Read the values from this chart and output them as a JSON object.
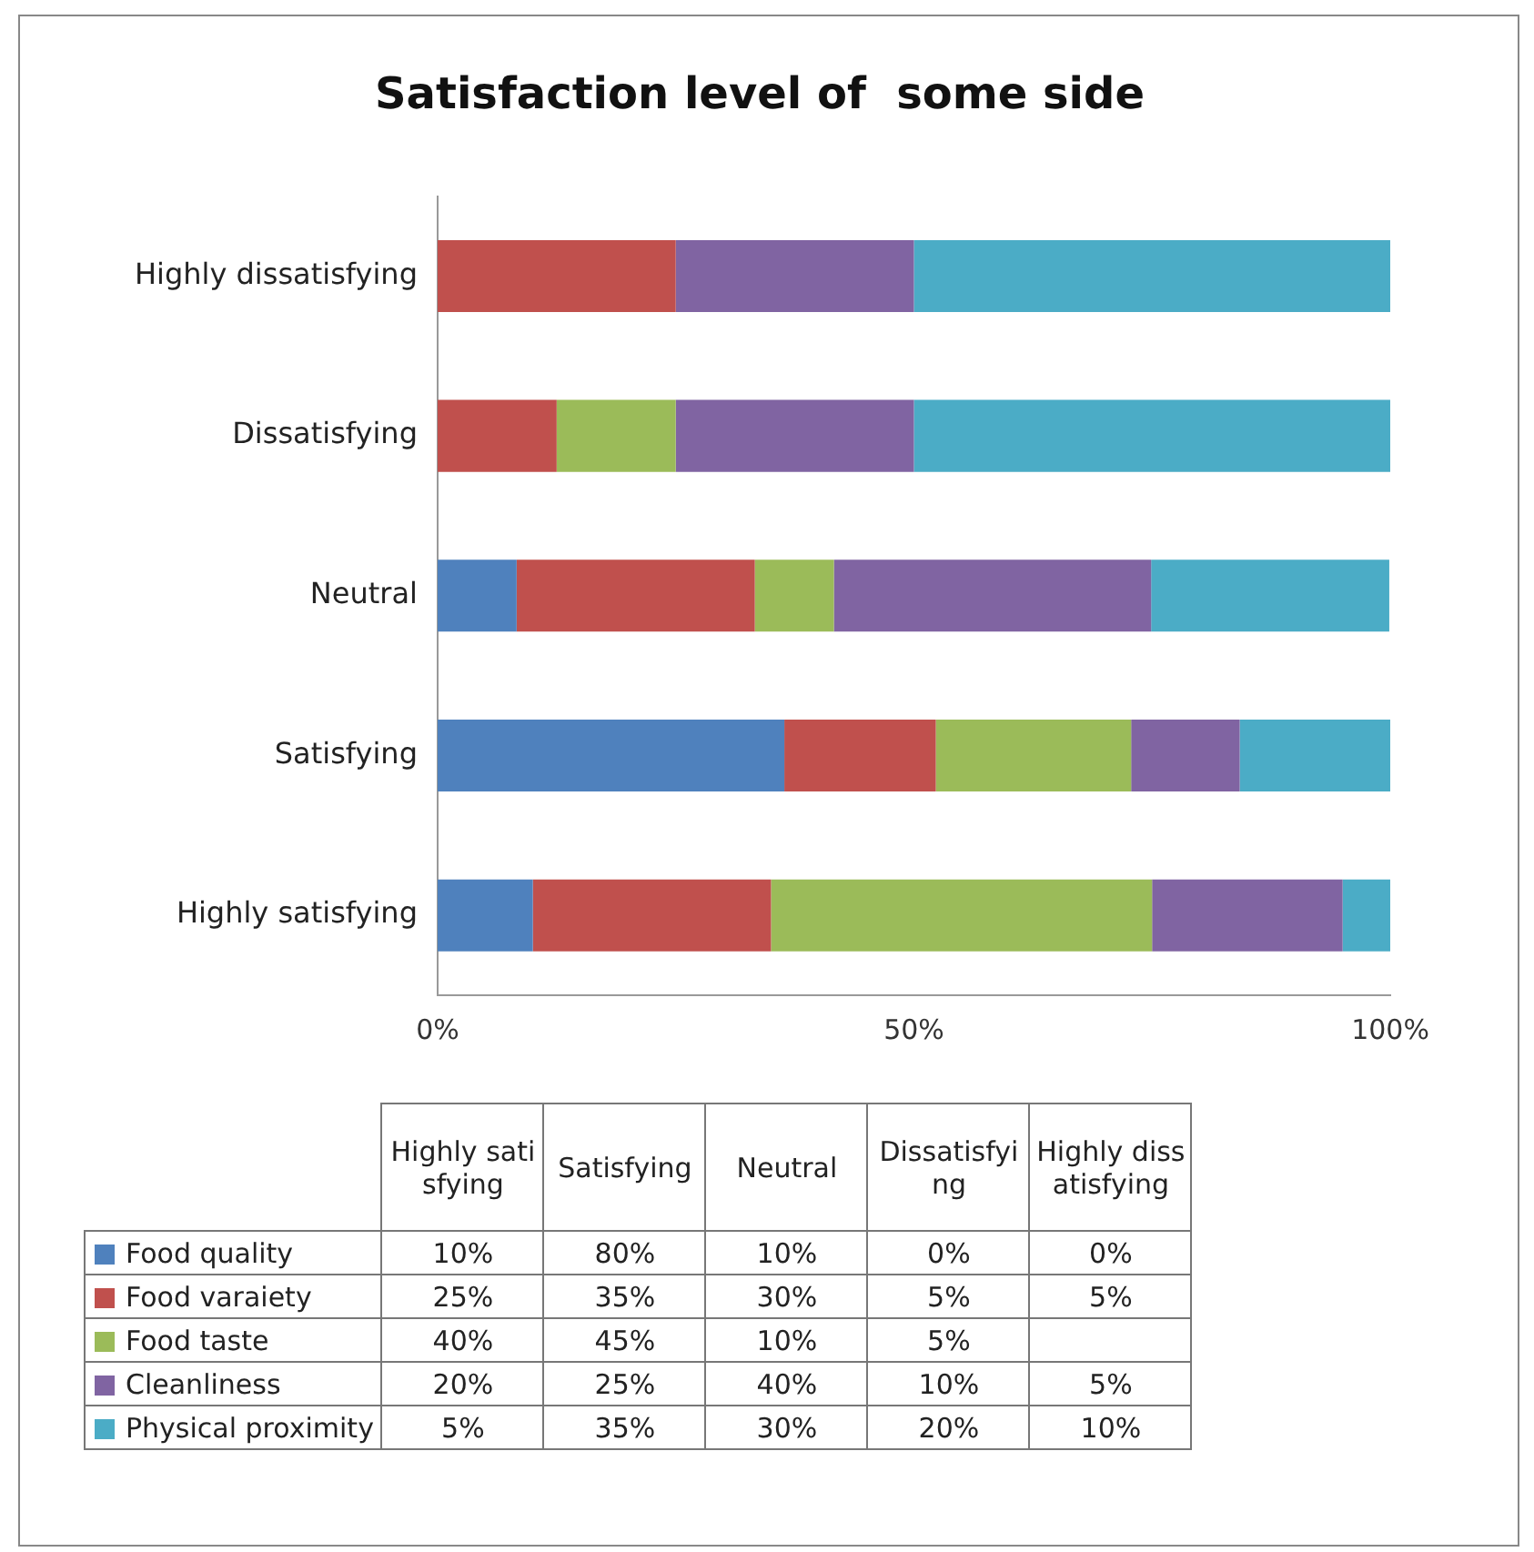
{
  "chart_data": [
    {
      "type": "bar",
      "title": "Satisfaction level of  some side",
      "orientation": "horizontal",
      "stacked": true,
      "categories": [
        "Highly dissatisfying",
        "Dissatisfying",
        "Neutral",
        "Satisfying",
        "Highly satisfying"
      ],
      "xlim": [
        0,
        100
      ],
      "xticks": [
        {
          "value": 0,
          "label": "0%"
        },
        {
          "value": 50,
          "label": "50%"
        },
        {
          "value": 100,
          "label": "100%"
        }
      ],
      "series": [
        {
          "name": "Food quality",
          "color": "#4f81bd",
          "values": [
            0,
            0,
            8.3,
            36.4,
            10
          ]
        },
        {
          "name": "Food varaiety",
          "color": "#c0504d",
          "values": [
            25,
            12.5,
            25,
            15.9,
            25
          ]
        },
        {
          "name": "Food taste",
          "color": "#9bbb59",
          "values": [
            null,
            12.5,
            8.3,
            20.5,
            40
          ]
        },
        {
          "name": "Cleanliness",
          "color": "#8064a2",
          "values": [
            25,
            25,
            33.3,
            11.4,
            20
          ]
        },
        {
          "name": "Physical proximity",
          "color": "#4bacc6",
          "values": [
            50,
            50,
            25,
            15.9,
            5
          ]
        }
      ]
    },
    {
      "type": "other",
      "categories": [
        "Highly satisfying",
        "Satisfying",
        "Neutral",
        "Dissatisfying",
        "Highly dissatisfying"
      ],
      "cell_labels": [
        [
          "10%",
          "80%",
          "10%",
          "0%",
          "0%"
        ],
        [
          "25%",
          "35%",
          "30%",
          "5%",
          "5%"
        ],
        [
          "40%",
          "45%",
          "10%",
          "5%",
          null
        ],
        [
          "20%",
          "25%",
          "40%",
          "10%",
          "5%"
        ],
        [
          "5%",
          "35%",
          "30%",
          "20%",
          "10%"
        ]
      ]
    }
  ]
}
